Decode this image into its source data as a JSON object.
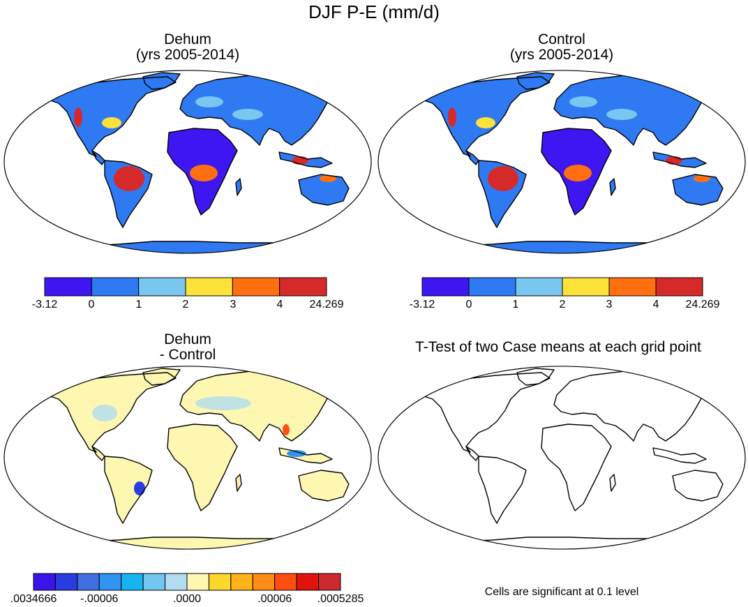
{
  "title": "DJF P-E (mm/d)",
  "panels": [
    {
      "id": "dehum",
      "title_line1": "Dehum",
      "title_line2": "(yrs 2005-2014)",
      "type": "abs"
    },
    {
      "id": "control",
      "title_line1": "Control",
      "title_line2": "(yrs 2005-2014)",
      "type": "abs"
    },
    {
      "id": "diff",
      "title_line1": "Dehum",
      "title_line2": "- Control",
      "type": "diff"
    },
    {
      "id": "ttest",
      "title_line1": "T-Test of two Case means at each grid point",
      "title_line2": "",
      "type": "blank"
    }
  ],
  "colorbar_abs": {
    "colors": [
      "#3e16f2",
      "#2f7af2",
      "#79c6ef",
      "#fde23a",
      "#ff6f0f",
      "#d62a2a"
    ],
    "labels": [
      "-3.12",
      "0",
      "1",
      "2",
      "3",
      "4",
      "24.269"
    ]
  },
  "colorbar_diff": {
    "colors": [
      "#3a14e8",
      "#2a3ce0",
      "#3f6fe0",
      "#2f95ee",
      "#17b4f2",
      "#72c6ef",
      "#b2dcef",
      "#fdf7b2",
      "#fdd62e",
      "#fdb319",
      "#ff8c16",
      "#ff4e12",
      "#e0140f",
      "#cc2a2f"
    ],
    "labels": [
      ".0034666",
      "-.00006",
      ".0000",
      ".00006",
      ".0005285"
    ]
  },
  "ttest_note": "Cells are significant at 0.1 level"
}
